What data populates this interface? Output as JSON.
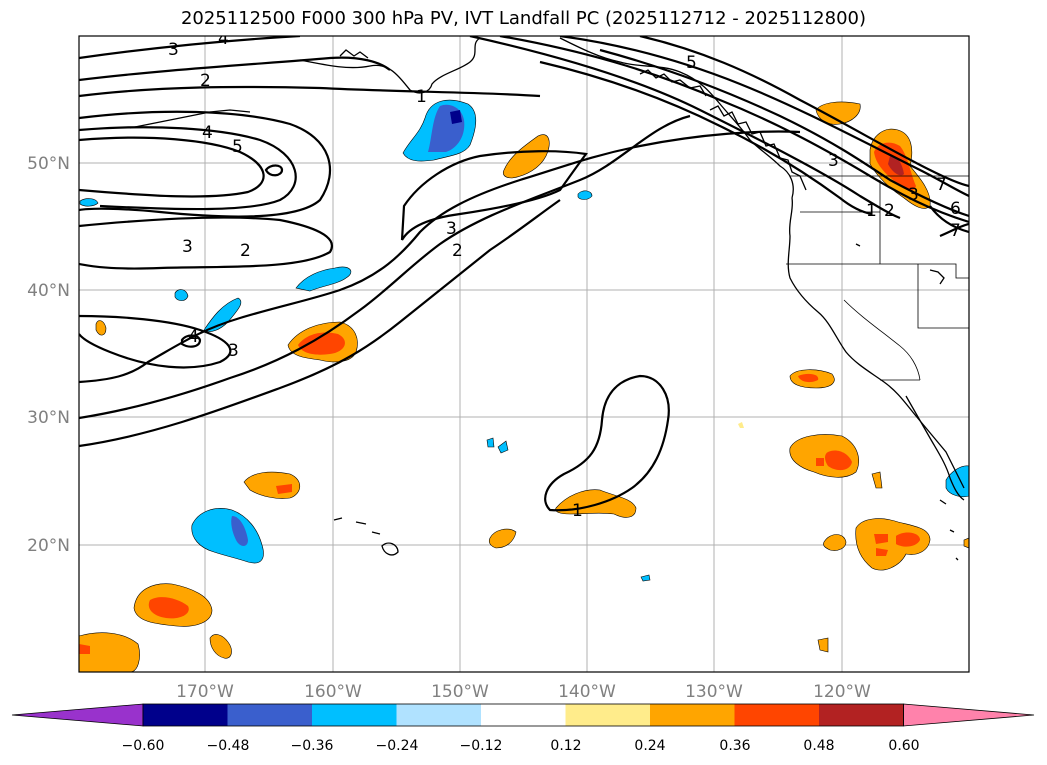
{
  "title": "2025112500 F000 300 hPa PV, IVT Landfall PC (2025112712 - 2025112800)",
  "lat_ticks": [
    "50°N",
    "40°N",
    "30°N",
    "20°N"
  ],
  "lon_ticks": [
    "170°W",
    "160°W",
    "150°W",
    "140°W",
    "130°W",
    "120°W"
  ],
  "colorbar": {
    "ticks": [
      "−0.60",
      "−0.48",
      "−0.36",
      "−0.24",
      "−0.12",
      "0.12",
      "0.24",
      "0.36",
      "0.48",
      "0.60"
    ],
    "colors": [
      "#9932cc",
      "#00008b",
      "#3a5fcd",
      "#00bfff",
      "#b0e2ff",
      "#ffffff",
      "#ffec8b",
      "#ffa500",
      "#ff4500",
      "#b22222",
      "#ff82ab"
    ]
  },
  "contour_labels": [
    "3",
    "4",
    "2",
    "4",
    "5",
    "3",
    "2",
    "3",
    "3",
    "4",
    "1",
    "3",
    "2",
    "1",
    "5",
    "3",
    "7",
    "2",
    "6",
    "7",
    "1"
  ]
}
